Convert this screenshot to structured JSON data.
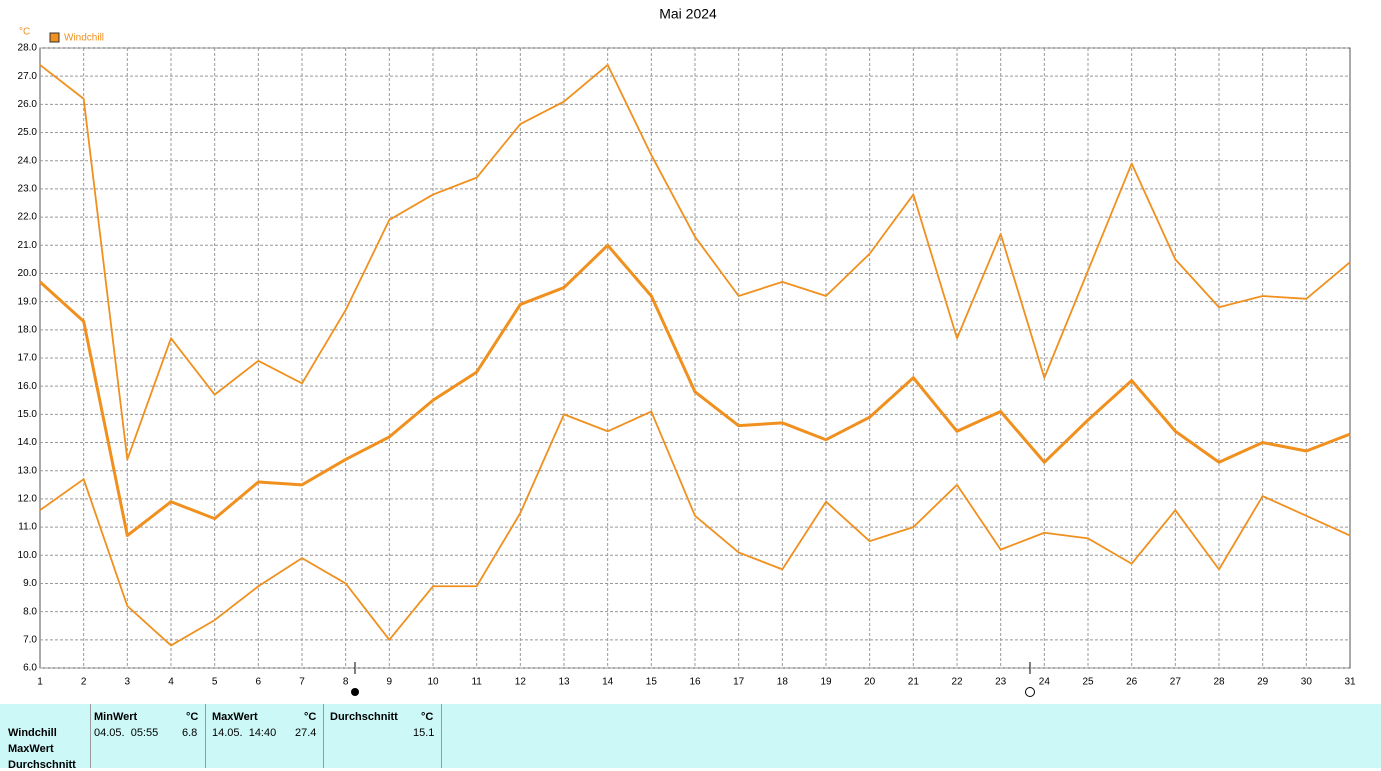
{
  "chart_data": {
    "type": "line",
    "title": "Mai 2024",
    "y_unit": "°C",
    "legend": "Windchill",
    "color": "#f0901e",
    "grid": true,
    "categories": [
      "1",
      "2",
      "3",
      "4",
      "5",
      "6",
      "7",
      "8",
      "9",
      "10",
      "11",
      "12",
      "13",
      "14",
      "15",
      "16",
      "17",
      "18",
      "19",
      "20",
      "21",
      "22",
      "23",
      "24",
      "25",
      "26",
      "27",
      "28",
      "29",
      "30",
      "31"
    ],
    "series": [
      {
        "color": "#f0901e",
        "values": [
          27.4,
          26.2,
          13.4,
          17.7,
          15.7,
          16.9,
          16.1,
          18.7,
          21.9,
          22.8,
          23.4,
          25.3,
          26.1,
          27.4,
          24.2,
          21.3,
          19.2,
          19.7,
          19.2,
          20.7,
          22.8,
          17.7,
          21.4,
          16.3,
          20.1,
          23.9,
          20.5,
          18.8,
          19.2,
          19.1,
          20.4
        ]
      },
      {
        "color": "#f0901e",
        "values": [
          19.7,
          18.3,
          10.7,
          11.9,
          11.3,
          12.6,
          12.5,
          13.4,
          14.2,
          15.5,
          16.5,
          18.9,
          19.5,
          21.0,
          19.2,
          15.8,
          14.6,
          14.7,
          14.1,
          14.9,
          16.3,
          14.4,
          15.1,
          13.3,
          14.8,
          16.2,
          14.4,
          13.3,
          14.0,
          13.7,
          14.3
        ]
      },
      {
        "color": "#f0901e",
        "values": [
          11.6,
          12.7,
          8.2,
          6.8,
          7.7,
          8.9,
          9.9,
          9.0,
          7.0,
          8.9,
          8.9,
          11.5,
          15.0,
          14.4,
          15.1,
          11.4,
          10.1,
          9.5,
          11.9,
          10.5,
          11.0,
          12.5,
          10.2,
          10.8,
          10.6,
          9.7,
          11.6,
          9.5,
          12.1,
          11.4,
          10.7
        ]
      }
    ],
    "ylim": [
      6,
      28
    ],
    "yticks": [
      {
        "value": 6,
        "label": "6.0"
      },
      {
        "value": 7,
        "label": "7.0"
      },
      {
        "value": 8,
        "label": "8.0"
      },
      {
        "value": 9,
        "label": "9.0"
      },
      {
        "value": 10,
        "label": "10.0"
      },
      {
        "value": 11,
        "label": "11.0"
      },
      {
        "value": 12,
        "label": "12.0"
      },
      {
        "value": 13,
        "label": "13.0"
      },
      {
        "value": 14,
        "label": "14.0"
      },
      {
        "value": 15,
        "label": "15.0"
      },
      {
        "value": 16,
        "label": "16.0"
      },
      {
        "value": 17,
        "label": "17.0"
      },
      {
        "value": 18,
        "label": "18.0"
      },
      {
        "value": 19,
        "label": "19.0"
      },
      {
        "value": 20,
        "label": "20.0"
      },
      {
        "value": 21,
        "label": "21.0"
      },
      {
        "value": 22,
        "label": "22.0"
      },
      {
        "value": 23,
        "label": "23.0"
      },
      {
        "value": 24,
        "label": "24.0"
      },
      {
        "value": 25,
        "label": "25.0"
      },
      {
        "value": 26,
        "label": "26.0"
      },
      {
        "value": 27,
        "label": "27.0"
      },
      {
        "value": 28,
        "label": "28.0"
      }
    ]
  },
  "table": {
    "headers": [
      "MinWert",
      "°C",
      "MaxWert",
      "°C",
      "Durchschnitt",
      "°C"
    ],
    "row_labels": [
      "Windchill",
      "MaxWert",
      "Durchschnitt"
    ],
    "row": [
      "04.05.  05:55",
      6.8,
      "14.05.  14:40",
      27.4,
      15.1
    ]
  }
}
